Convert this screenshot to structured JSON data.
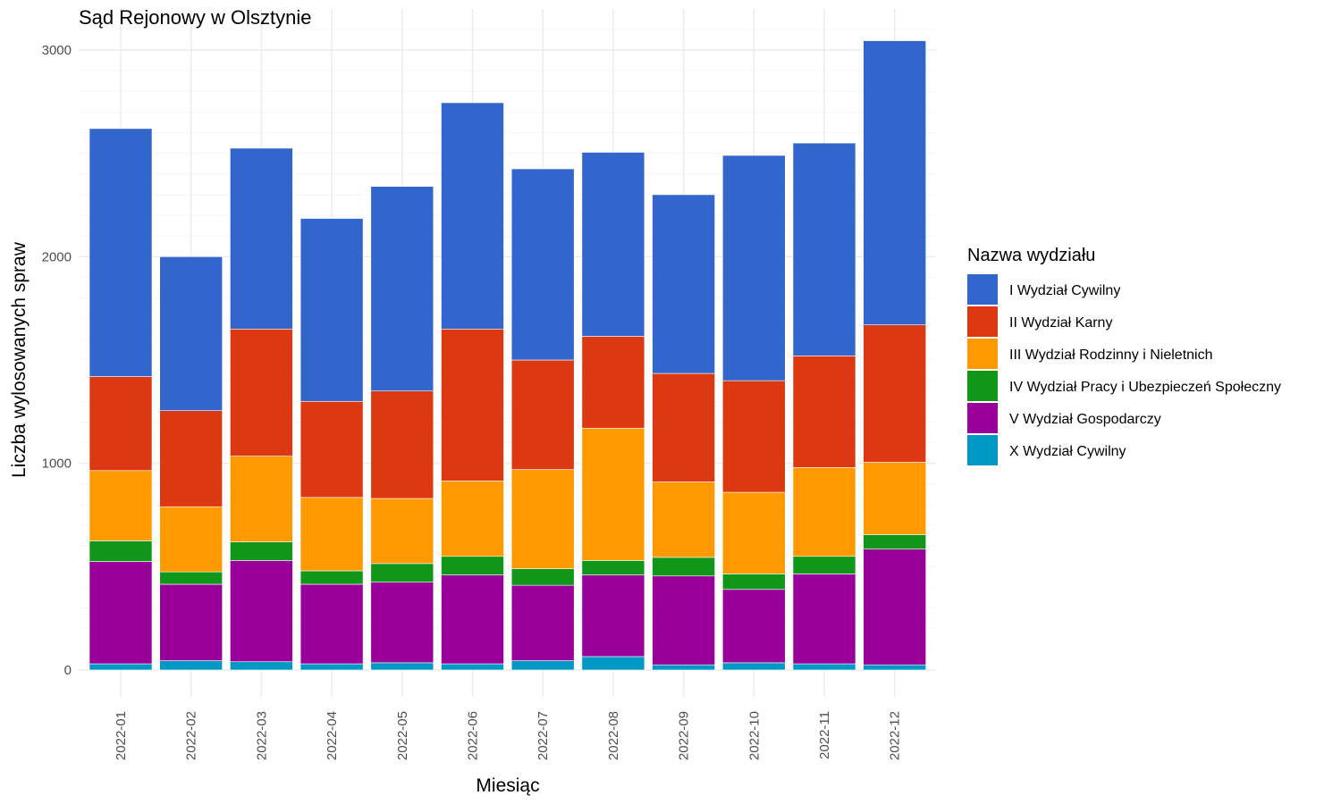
{
  "chart_data": {
    "type": "bar",
    "stacked": true,
    "title": "Sąd Rejonowy w Olsztynie",
    "xlabel": "Miesiąc",
    "ylabel": "Liczba wylosowanych spraw",
    "ylim": [
      0,
      3120
    ],
    "yticks": [
      0,
      1000,
      2000,
      3000
    ],
    "grid": true,
    "legend_title": "Nazwa wydziału",
    "legend_position": "right",
    "categories": [
      "2022-01",
      "2022-02",
      "2022-03",
      "2022-04",
      "2022-05",
      "2022-06",
      "2022-07",
      "2022-08",
      "2022-09",
      "2022-10",
      "2022-11",
      "2022-12"
    ],
    "series": [
      {
        "name": "X Wydział Cywilny",
        "color": "#0099c6",
        "values": [
          30,
          45,
          40,
          30,
          35,
          30,
          45,
          65,
          25,
          35,
          30,
          25
        ]
      },
      {
        "name": "V Wydział Gospodarczy",
        "color": "#990099",
        "values": [
          495,
          370,
          490,
          385,
          390,
          430,
          365,
          395,
          430,
          355,
          435,
          560
        ]
      },
      {
        "name": "IV Wydział Pracy i Ubezpieczeń Społeczny",
        "color": "#109618",
        "values": [
          100,
          60,
          90,
          65,
          90,
          90,
          80,
          70,
          90,
          75,
          85,
          70
        ]
      },
      {
        "name": "III Wydział Rodzinny i Nieletnich",
        "color": "#ff9900",
        "values": [
          340,
          315,
          415,
          355,
          315,
          365,
          480,
          640,
          365,
          395,
          430,
          350
        ]
      },
      {
        "name": "II Wydział Karny",
        "color": "#dc3912",
        "values": [
          455,
          465,
          615,
          465,
          520,
          735,
          530,
          445,
          525,
          540,
          540,
          665
        ]
      },
      {
        "name": "I Wydział Cywilny",
        "color": "#3366cc",
        "values": [
          1200,
          745,
          875,
          885,
          990,
          1095,
          925,
          890,
          865,
          1090,
          1030,
          1375
        ]
      }
    ],
    "legend_order": [
      "I Wydział Cywilny",
      "II Wydział Karny",
      "III Wydział Rodzinny i Nieletnich",
      "IV Wydział Pracy i Ubezpieczeń Społeczny",
      "V Wydział Gospodarczy",
      "X Wydział Cywilny"
    ]
  }
}
